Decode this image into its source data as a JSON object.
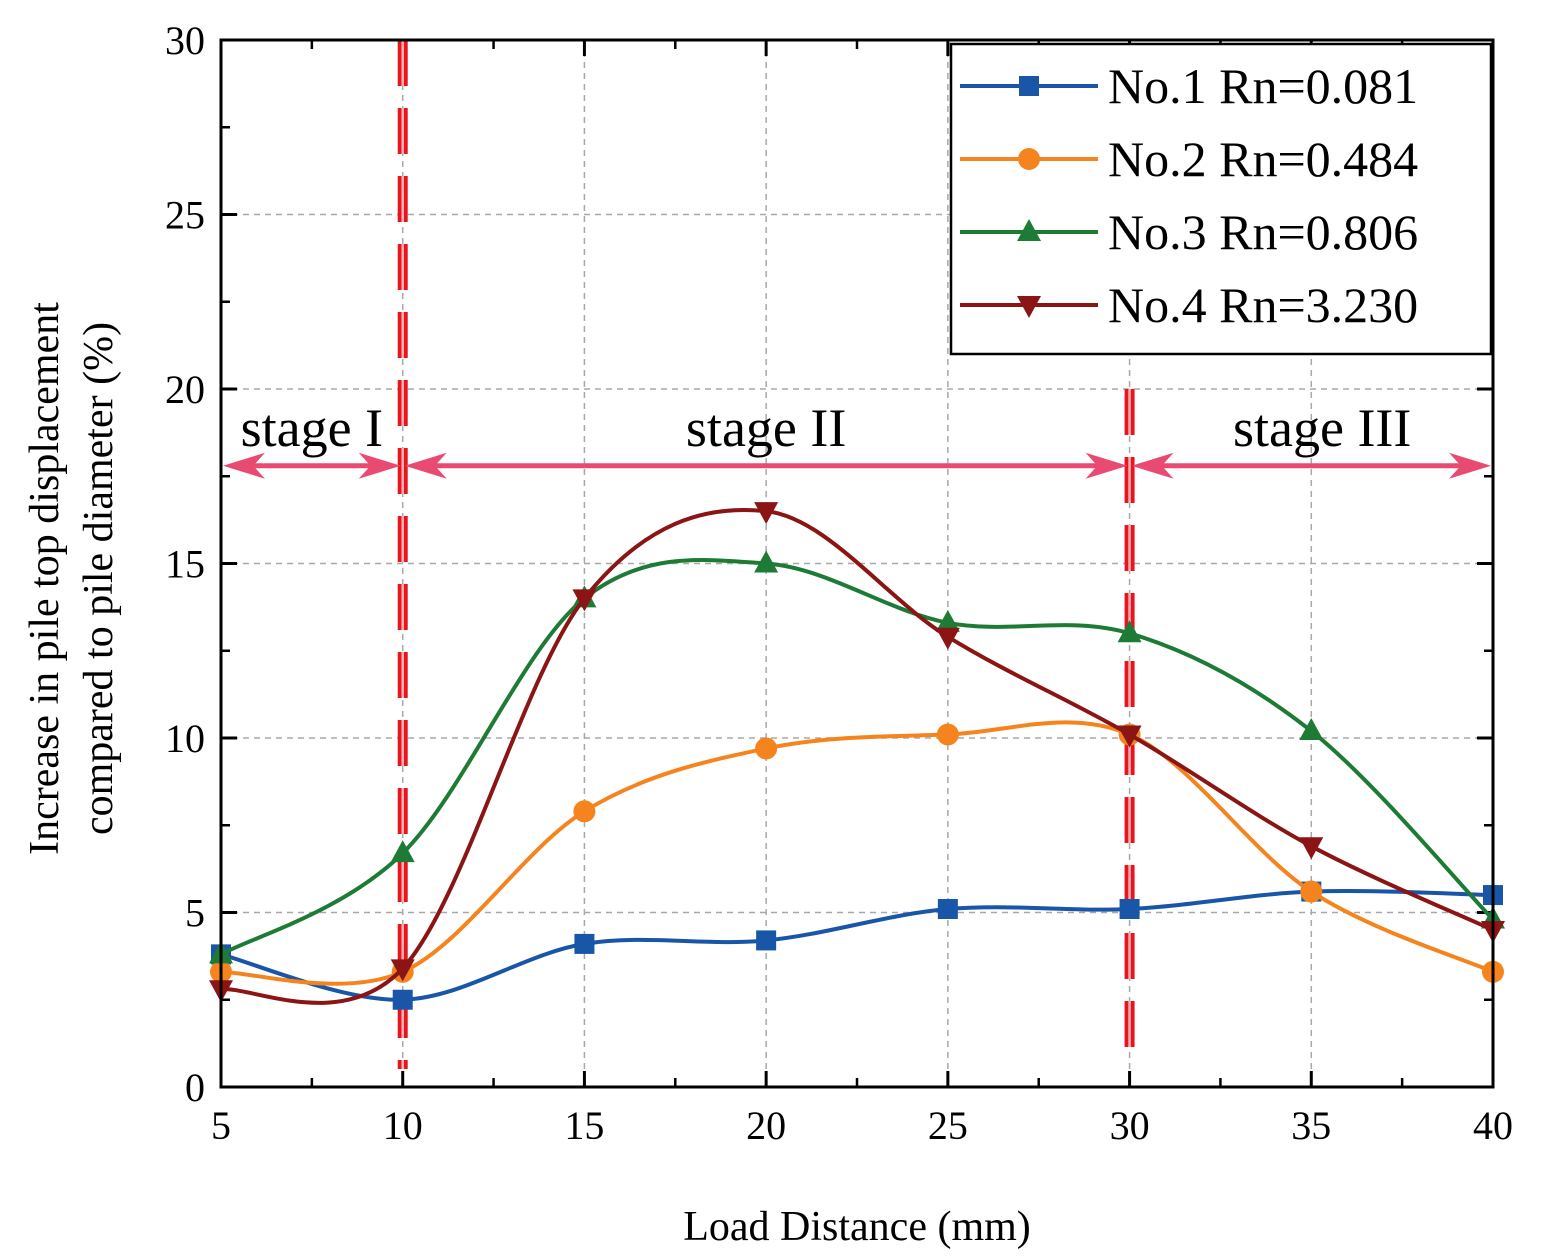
{
  "chart_data": {
    "type": "line",
    "xlabel": "Load Distance (mm)",
    "ylabel_lines": [
      "Increase in pile top displacement",
      "compared to pile diameter (%)"
    ],
    "xlim": [
      5,
      40
    ],
    "ylim": [
      0,
      30
    ],
    "x_ticks": [
      5,
      10,
      15,
      20,
      25,
      30,
      35,
      40
    ],
    "y_ticks": [
      0,
      5,
      10,
      15,
      20,
      25,
      30
    ],
    "grid": true,
    "legend_position": "top-right",
    "x": [
      5,
      10,
      15,
      20,
      25,
      30,
      35,
      40
    ],
    "series": [
      {
        "name": "No.1 Rn=0.081",
        "color": "#1a56a8",
        "marker": "square",
        "values": [
          3.8,
          2.5,
          4.1,
          4.2,
          5.1,
          5.1,
          5.6,
          5.5
        ]
      },
      {
        "name": "No.2 Rn=0.484",
        "color": "#f5841f",
        "marker": "circle",
        "values": [
          3.3,
          3.3,
          7.9,
          9.7,
          10.1,
          10.1,
          5.6,
          3.3
        ]
      },
      {
        "name": "No.3 Rn=0.806",
        "color": "#1e7b35",
        "marker": "triangle-up",
        "values": [
          3.8,
          6.7,
          14.0,
          15.0,
          13.3,
          13.0,
          10.2,
          4.8
        ]
      },
      {
        "name": "No.4 Rn=3.230",
        "color": "#8b1414",
        "marker": "triangle-down",
        "values": [
          2.8,
          3.4,
          14.0,
          16.5,
          12.9,
          10.1,
          6.9,
          4.5
        ]
      }
    ],
    "stage_dividers": {
      "x": [
        10,
        30
      ],
      "color": "#e8141e"
    },
    "stage_arrow": {
      "y": 17.8,
      "color": "#e84a72"
    },
    "stages": [
      {
        "label": "stage I",
        "x_from": 5,
        "x_to": 10,
        "label_x": 7.5
      },
      {
        "label": "stage II",
        "x_from": 10,
        "x_to": 30,
        "label_x": 20
      },
      {
        "label": "stage III",
        "x_from": 30,
        "x_to": 40,
        "label_x": 35.3
      }
    ]
  }
}
